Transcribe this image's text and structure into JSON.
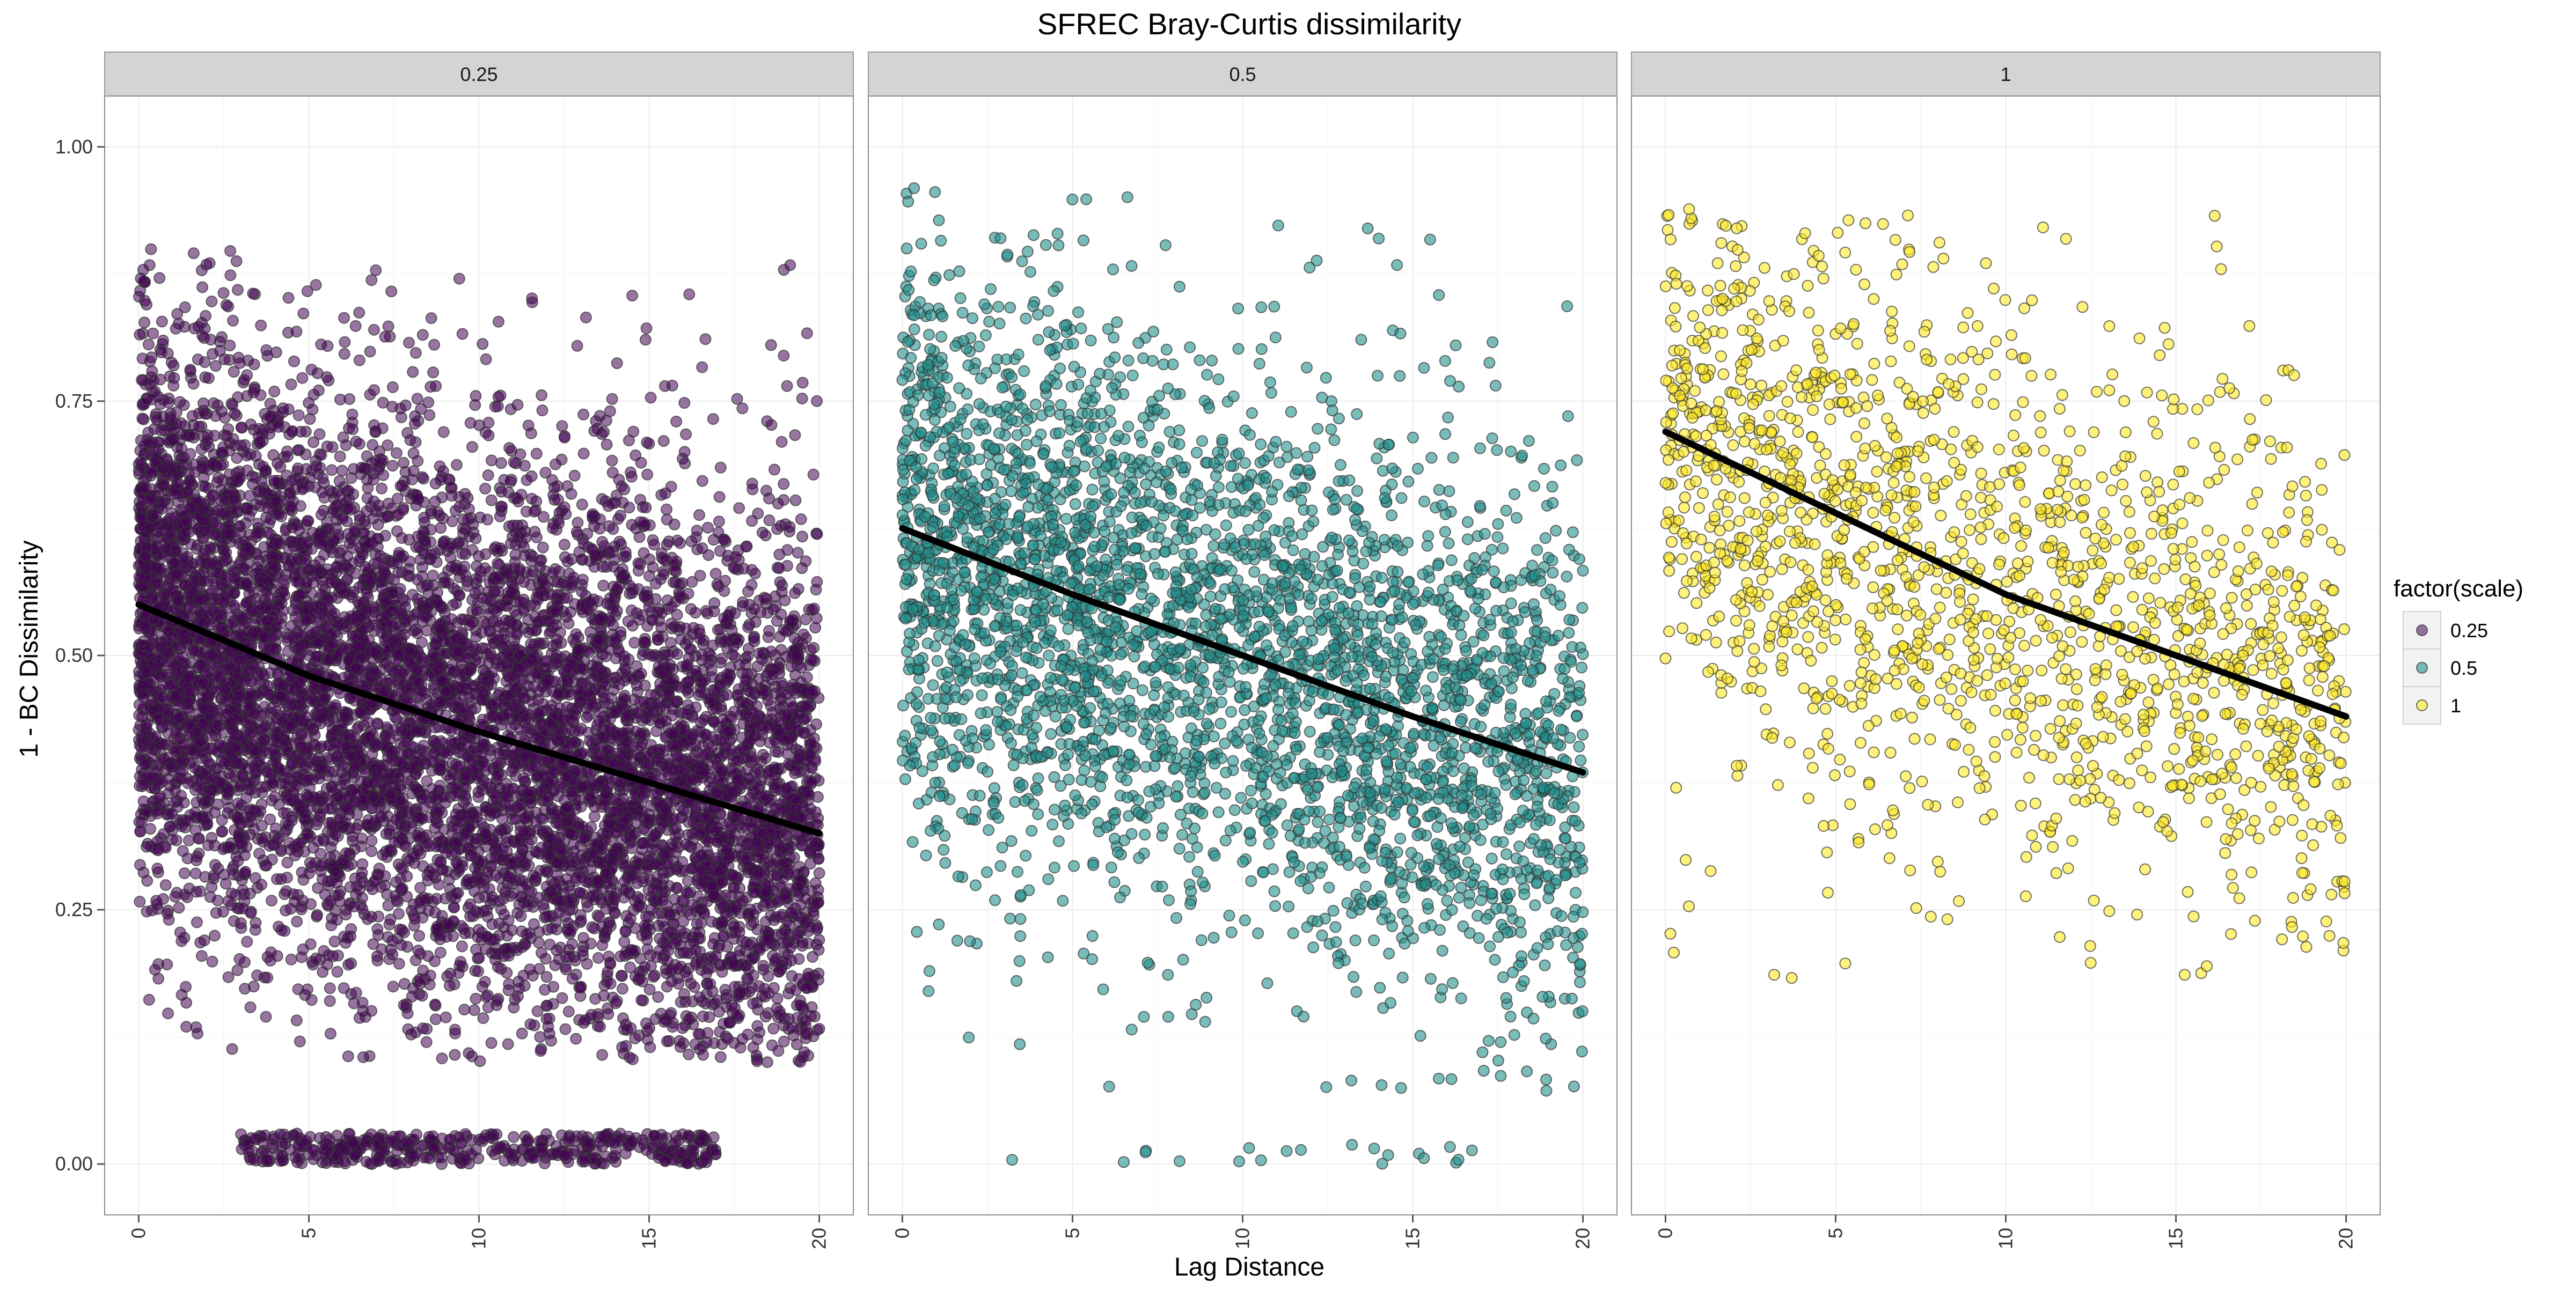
{
  "chart_data": {
    "type": "scatter",
    "title": "SFREC Bray-Curtis dissimilarity",
    "xlabel": "Lag Distance",
    "ylabel": "1 - BC Dissimilarity",
    "xlim": [
      -1,
      21
    ],
    "ylim": [
      -0.05,
      1.05
    ],
    "x_ticks": [
      0,
      5,
      10,
      15,
      20
    ],
    "x_tick_labels": [
      "0",
      "5",
      "10",
      "15",
      "20"
    ],
    "y_ticks": [
      0,
      0.25,
      0.5,
      0.75,
      1.0
    ],
    "y_tick_labels": [
      "0.00",
      "0.25",
      "0.50",
      "0.75",
      "1.00"
    ],
    "grid": true,
    "legend": {
      "title": "factor(scale)",
      "position": "right",
      "entries": [
        "0.25",
        "0.5",
        "1"
      ]
    },
    "panels": [
      {
        "strip": "0.25",
        "color": "#440154",
        "point_alpha": 0.55,
        "point_count": 9000,
        "x_range": [
          0,
          20
        ],
        "fit_curve": {
          "x": [
            0,
            5,
            10,
            15,
            20
          ],
          "y": [
            0.55,
            0.48,
            0.425,
            0.375,
            0.325
          ]
        },
        "bands": [
          {
            "y_range": [
              0.1,
              0.9
            ],
            "weight": 0.95
          },
          {
            "y_range": [
              0.0,
              0.03
            ],
            "weight": 0.05
          }
        ]
      },
      {
        "strip": "0.5",
        "color": "#21908C",
        "point_alpha": 0.6,
        "point_count": 3600,
        "x_range": [
          0,
          20
        ],
        "fit_curve": {
          "x": [
            0,
            5,
            10,
            15,
            20
          ],
          "y": [
            0.625,
            0.56,
            0.5,
            0.44,
            0.385
          ]
        },
        "bands": [
          {
            "y_range": [
              0.07,
              0.96
            ],
            "weight": 0.99
          },
          {
            "y_range": [
              0.0,
              0.02
            ],
            "weight": 0.01
          }
        ]
      },
      {
        "strip": "1",
        "color": "#FDE725",
        "point_alpha": 0.6,
        "point_count": 1700,
        "x_range": [
          0,
          20
        ],
        "fit_curve": {
          "x": [
            0,
            5,
            10,
            15,
            20
          ],
          "y": [
            0.72,
            0.64,
            0.56,
            0.5,
            0.44
          ]
        },
        "bands": [
          {
            "y_range": [
              0.18,
              0.94
            ],
            "weight": 1.0
          }
        ]
      }
    ]
  }
}
